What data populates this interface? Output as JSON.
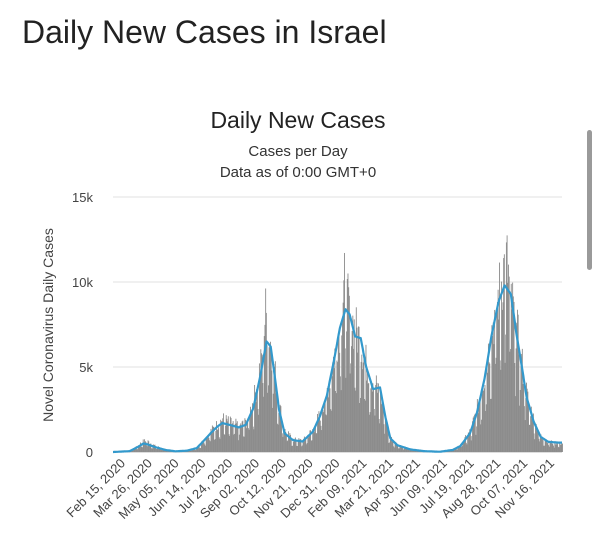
{
  "page": {
    "title": "Daily New Cases in Israel"
  },
  "chart_data": {
    "type": "bar",
    "title": "Daily New Cases",
    "subtitle_lines": [
      "Cases per Day",
      "Data as of 0:00 GMT+0"
    ],
    "xlabel": "",
    "ylabel": "Novel Coronavirus Daily Cases",
    "ylim": [
      0,
      15000
    ],
    "y_ticks": [
      0,
      5000,
      10000,
      15000
    ],
    "y_tick_labels": [
      "0",
      "5k",
      "10k",
      "15k"
    ],
    "x_tick_labels": [
      "Feb 15, 2020",
      "Mar 26, 2020",
      "May 05, 2020",
      "Jun 14, 2020",
      "Jul 24, 2020",
      "Sep 02, 2020",
      "Oct 12, 2020",
      "Nov 21, 2020",
      "Dec 31, 2020",
      "Feb 09, 2021",
      "Mar 21, 2021",
      "Apr 30, 2021",
      "Jun 09, 2021",
      "Jul 19, 2021",
      "Aug 28, 2021",
      "Oct 07, 2021",
      "Nov 16, 2021"
    ],
    "x_range": [
      "2020-02-15",
      "2021-11-25"
    ],
    "grid": true,
    "colors": {
      "bars": "#8c8c8c",
      "moving_average": "#3399cc"
    },
    "series": [
      {
        "kind": "bar",
        "values_by_date": [
          [
            "2020-02-15",
            0
          ],
          [
            "2020-03-10",
            60
          ],
          [
            "2020-03-20",
            300
          ],
          [
            "2020-03-28",
            600
          ],
          [
            "2020-04-03",
            650
          ],
          [
            "2020-04-15",
            350
          ],
          [
            "2020-04-30",
            150
          ],
          [
            "2020-05-15",
            30
          ],
          [
            "2020-06-01",
            80
          ],
          [
            "2020-06-15",
            250
          ],
          [
            "2020-06-25",
            700
          ],
          [
            "2020-07-05",
            1200
          ],
          [
            "2020-07-15",
            1600
          ],
          [
            "2020-07-22",
            1900
          ],
          [
            "2020-08-01",
            1700
          ],
          [
            "2020-08-15",
            1500
          ],
          [
            "2020-08-25",
            1700
          ],
          [
            "2020-09-05",
            3000
          ],
          [
            "2020-09-15",
            5000
          ],
          [
            "2020-09-22",
            8000
          ],
          [
            "2020-09-28",
            6500
          ],
          [
            "2020-10-03",
            5500
          ],
          [
            "2020-10-10",
            3000
          ],
          [
            "2020-10-20",
            1200
          ],
          [
            "2020-11-01",
            700
          ],
          [
            "2020-11-15",
            650
          ],
          [
            "2020-11-30",
            1300
          ],
          [
            "2020-12-10",
            2200
          ],
          [
            "2020-12-20",
            3500
          ],
          [
            "2020-12-30",
            5500
          ],
          [
            "2021-01-08",
            7500
          ],
          [
            "2021-01-14",
            9500
          ],
          [
            "2021-01-20",
            8200
          ],
          [
            "2021-01-28",
            7200
          ],
          [
            "2021-02-05",
            6500
          ],
          [
            "2021-02-15",
            5000
          ],
          [
            "2021-02-25",
            4000
          ],
          [
            "2021-03-05",
            3500
          ],
          [
            "2021-03-12",
            2500
          ],
          [
            "2021-03-20",
            900
          ],
          [
            "2021-04-01",
            400
          ],
          [
            "2021-04-20",
            150
          ],
          [
            "2021-05-10",
            50
          ],
          [
            "2021-06-01",
            15
          ],
          [
            "2021-06-20",
            150
          ],
          [
            "2021-07-01",
            400
          ],
          [
            "2021-07-15",
            1200
          ],
          [
            "2021-07-25",
            2500
          ],
          [
            "2021-08-05",
            4500
          ],
          [
            "2021-08-15",
            7000
          ],
          [
            "2021-08-25",
            9000
          ],
          [
            "2021-09-01",
            10500
          ],
          [
            "2021-09-05",
            11000
          ],
          [
            "2021-09-12",
            8800
          ],
          [
            "2021-09-20",
            7000
          ],
          [
            "2021-09-28",
            5000
          ],
          [
            "2021-10-05",
            3200
          ],
          [
            "2021-10-15",
            1800
          ],
          [
            "2021-10-25",
            900
          ],
          [
            "2021-11-05",
            600
          ],
          [
            "2021-11-20",
            500
          ]
        ]
      },
      {
        "kind": "line",
        "values_by_date": [
          [
            "2020-02-15",
            0
          ],
          [
            "2020-03-10",
            50
          ],
          [
            "2020-03-22",
            300
          ],
          [
            "2020-03-30",
            500
          ],
          [
            "2020-04-05",
            450
          ],
          [
            "2020-04-15",
            300
          ],
          [
            "2020-05-01",
            120
          ],
          [
            "2020-05-15",
            40
          ],
          [
            "2020-06-01",
            80
          ],
          [
            "2020-06-15",
            230
          ],
          [
            "2020-06-25",
            650
          ],
          [
            "2020-07-05",
            1100
          ],
          [
            "2020-07-15",
            1500
          ],
          [
            "2020-07-22",
            1700
          ],
          [
            "2020-08-01",
            1600
          ],
          [
            "2020-08-15",
            1450
          ],
          [
            "2020-08-25",
            1600
          ],
          [
            "2020-09-05",
            2600
          ],
          [
            "2020-09-15",
            4500
          ],
          [
            "2020-09-24",
            6500
          ],
          [
            "2020-09-30",
            6200
          ],
          [
            "2020-10-05",
            4700
          ],
          [
            "2020-10-12",
            2500
          ],
          [
            "2020-10-20",
            1100
          ],
          [
            "2020-11-01",
            700
          ],
          [
            "2020-11-15",
            620
          ],
          [
            "2020-11-30",
            1200
          ],
          [
            "2020-12-10",
            2100
          ],
          [
            "2020-12-20",
            3300
          ],
          [
            "2020-12-30",
            5300
          ],
          [
            "2021-01-08",
            7300
          ],
          [
            "2021-01-16",
            8400
          ],
          [
            "2021-01-22",
            8100
          ],
          [
            "2021-01-30",
            6800
          ],
          [
            "2021-02-07",
            6700
          ],
          [
            "2021-02-15",
            5000
          ],
          [
            "2021-02-25",
            3700
          ],
          [
            "2021-03-07",
            3800
          ],
          [
            "2021-03-15",
            2000
          ],
          [
            "2021-03-22",
            800
          ],
          [
            "2021-04-01",
            400
          ],
          [
            "2021-04-20",
            150
          ],
          [
            "2021-05-10",
            50
          ],
          [
            "2021-06-01",
            15
          ],
          [
            "2021-06-20",
            120
          ],
          [
            "2021-07-01",
            350
          ],
          [
            "2021-07-15",
            1100
          ],
          [
            "2021-07-25",
            2300
          ],
          [
            "2021-08-05",
            4300
          ],
          [
            "2021-08-15",
            6800
          ],
          [
            "2021-08-25",
            8800
          ],
          [
            "2021-09-03",
            9800
          ],
          [
            "2021-09-12",
            9300
          ],
          [
            "2021-09-20",
            7000
          ],
          [
            "2021-09-28",
            5000
          ],
          [
            "2021-10-05",
            3200
          ],
          [
            "2021-10-15",
            1800
          ],
          [
            "2021-10-25",
            900
          ],
          [
            "2021-11-05",
            600
          ],
          [
            "2021-11-20",
            550
          ]
        ]
      }
    ]
  }
}
